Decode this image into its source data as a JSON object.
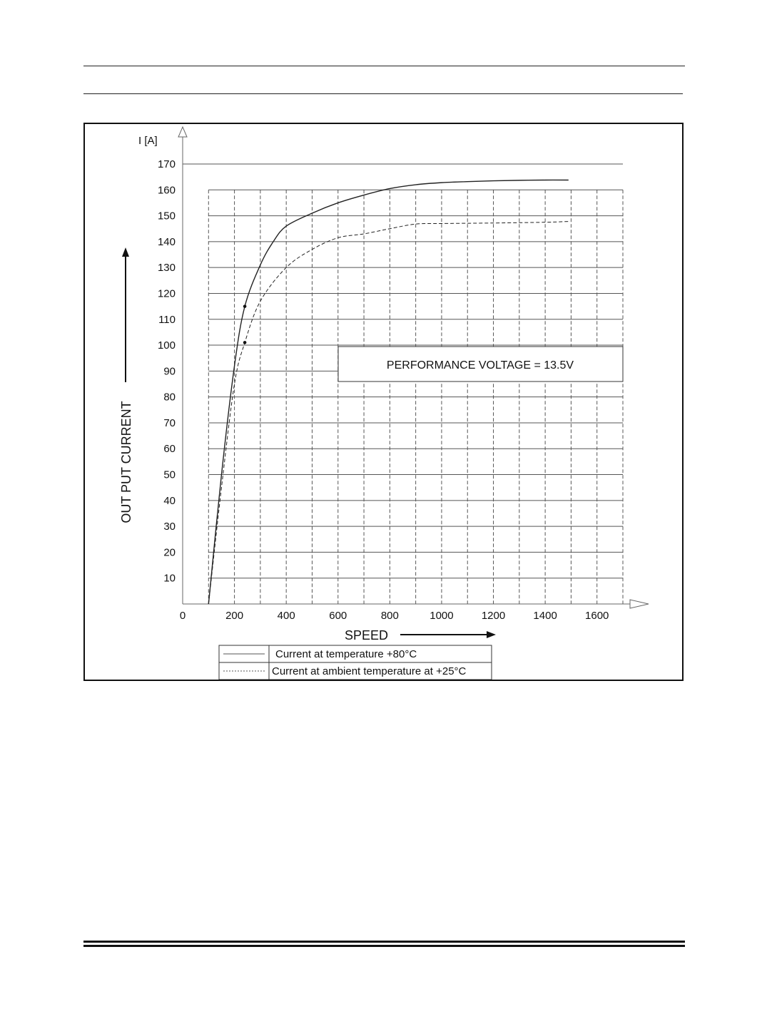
{
  "chart_data": {
    "type": "line",
    "ylabel": "OUT PUT CURRENT",
    "yunit": "I [A]",
    "xlabel": "SPEED",
    "annotation": "PERFORMANCE VOLTAGE = 13.5V",
    "xlim": [
      0,
      1700
    ],
    "ylim": [
      0,
      170
    ],
    "x_ticks": [
      0,
      200,
      400,
      600,
      800,
      1000,
      1200,
      1400,
      1600
    ],
    "y_ticks": [
      10,
      20,
      30,
      40,
      50,
      60,
      70,
      80,
      90,
      100,
      110,
      120,
      130,
      140,
      150,
      160,
      170
    ],
    "grid": true,
    "legend_position": "bottom",
    "series": [
      {
        "name": "Current at temperature +80°C",
        "style": "solid",
        "color": "#222222",
        "markers": [
          [
            240,
            115
          ]
        ],
        "points": [
          [
            100,
            0
          ],
          [
            150,
            50
          ],
          [
            200,
            92
          ],
          [
            240,
            115
          ],
          [
            300,
            131
          ],
          [
            350,
            140
          ],
          [
            400,
            146
          ],
          [
            500,
            151
          ],
          [
            600,
            155
          ],
          [
            700,
            158
          ],
          [
            800,
            160.5
          ],
          [
            900,
            162
          ],
          [
            1000,
            162.8
          ],
          [
            1100,
            163.2
          ],
          [
            1200,
            163.5
          ],
          [
            1300,
            163.7
          ],
          [
            1400,
            163.8
          ],
          [
            1490,
            163.8
          ]
        ]
      },
      {
        "name": "Current at ambient temperature at +25°C",
        "style": "dashed",
        "color": "#222222",
        "markers": [
          [
            240,
            101
          ]
        ],
        "points": [
          [
            100,
            0
          ],
          [
            150,
            45
          ],
          [
            200,
            85
          ],
          [
            240,
            101
          ],
          [
            300,
            117
          ],
          [
            400,
            130
          ],
          [
            500,
            137
          ],
          [
            600,
            141.5
          ],
          [
            700,
            143
          ],
          [
            800,
            145
          ],
          [
            900,
            146.8
          ],
          [
            1000,
            147
          ],
          [
            1200,
            147.2
          ],
          [
            1400,
            147.5
          ],
          [
            1490,
            147.8
          ]
        ]
      }
    ]
  }
}
